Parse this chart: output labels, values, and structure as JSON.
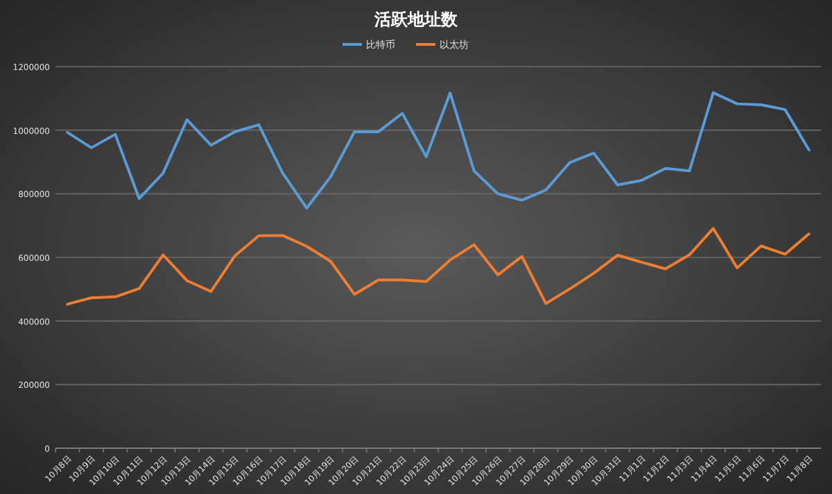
{
  "chart_data": {
    "type": "line",
    "title": "活跃地址数",
    "categories": [
      "10月8日",
      "10月9日",
      "10月10日",
      "10月11日",
      "10月12日",
      "10月13日",
      "10月14日",
      "10月15日",
      "10月16日",
      "10月17日",
      "10月18日",
      "10月19日",
      "10月20日",
      "10月21日",
      "10月22日",
      "10月23日",
      "10月24日",
      "10月25日",
      "10月26日",
      "10月27日",
      "10月28日",
      "10月29日",
      "10月30日",
      "10月31日",
      "11月1日",
      "11月2日",
      "11月3日",
      "11月4日",
      "11月5日",
      "11月6日",
      "11月7日",
      "11月8日"
    ],
    "series": [
      {
        "name": "比特币",
        "color": "#5b9bd5",
        "values": [
          993000,
          945000,
          987000,
          785000,
          865000,
          1033000,
          953000,
          995000,
          1017000,
          865000,
          755000,
          853000,
          995000,
          995000,
          1053000,
          917000,
          1117000,
          872000,
          800000,
          780000,
          812000,
          898000,
          928000,
          828000,
          842000,
          880000,
          872000,
          1118000,
          1083000,
          1080000,
          1065000,
          938000
        ]
      },
      {
        "name": "以太坊",
        "color": "#ed7d31",
        "values": [
          453000,
          473000,
          476000,
          502000,
          608000,
          527000,
          493000,
          605000,
          668000,
          669000,
          635000,
          588000,
          484000,
          529000,
          529000,
          524000,
          592000,
          640000,
          545000,
          603000,
          455000,
          501000,
          550000,
          607000,
          585000,
          564000,
          608000,
          691000,
          567000,
          636000,
          610000,
          674000
        ]
      }
    ],
    "ylim": [
      0,
      1200000
    ],
    "yticks": [
      0,
      200000,
      400000,
      600000,
      800000,
      1000000,
      1200000
    ],
    "grid": "y",
    "legend": "top",
    "marker": "none",
    "line_style": "solid"
  }
}
